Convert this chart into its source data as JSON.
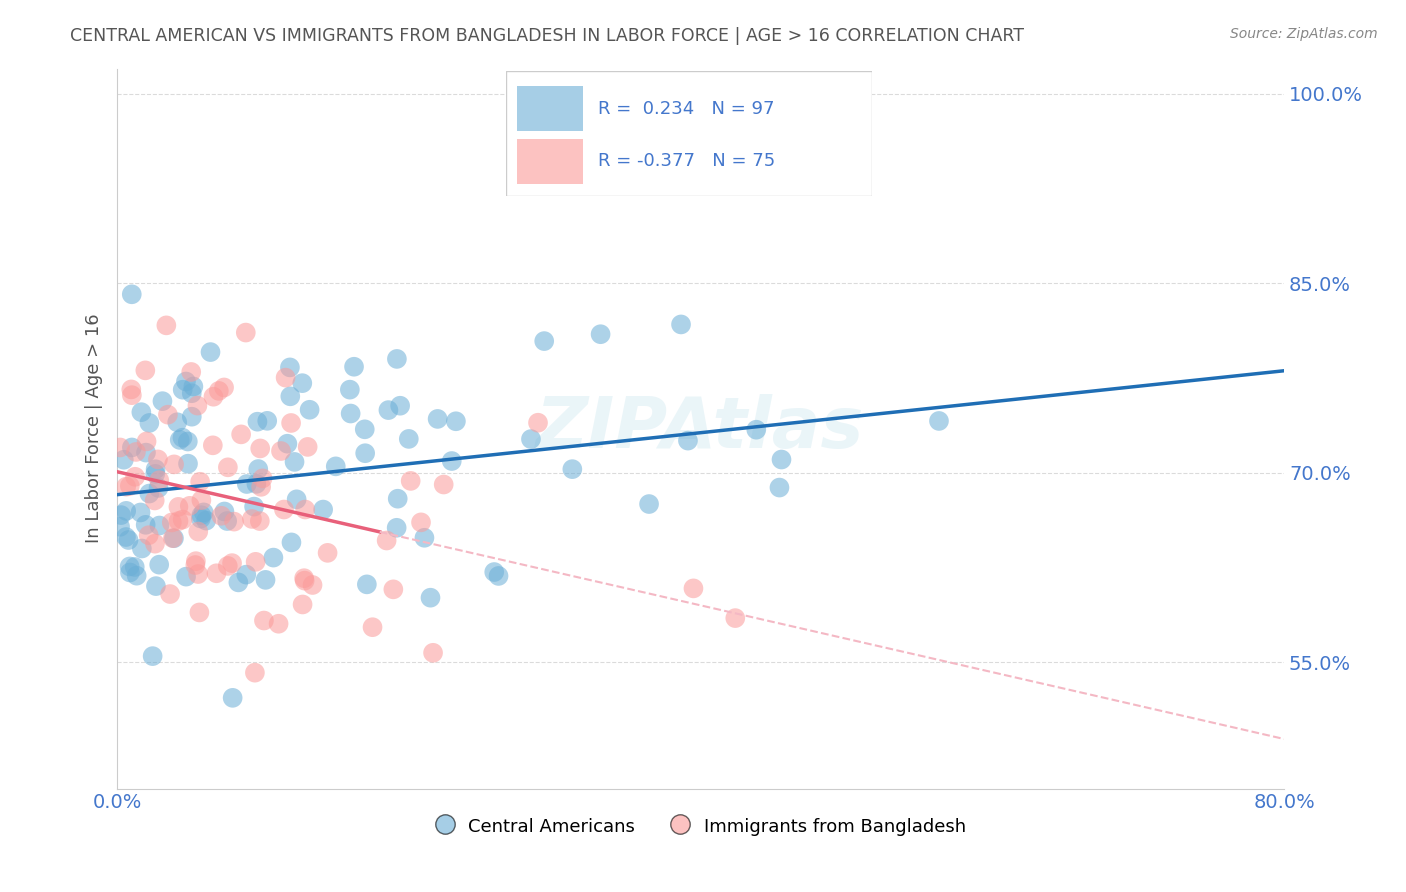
{
  "title": "CENTRAL AMERICAN VS IMMIGRANTS FROM BANGLADESH IN LABOR FORCE | AGE > 16 CORRELATION CHART",
  "source": "Source: ZipAtlas.com",
  "ylabel": "In Labor Force | Age > 16",
  "watermark": "ZIPAtlas",
  "xlim": [
    0.0,
    0.8
  ],
  "ylim": [
    0.45,
    1.02
  ],
  "yticks": [
    0.55,
    0.7,
    0.85,
    1.0
  ],
  "ytick_labels": [
    "55.0%",
    "70.0%",
    "85.0%",
    "100.0%"
  ],
  "xticks": [
    0.0,
    0.2,
    0.4,
    0.6,
    0.8
  ],
  "xtick_labels": [
    "0.0%",
    "",
    "",
    "",
    "80.0%"
  ],
  "blue_R": 0.234,
  "blue_N": 97,
  "pink_R": -0.377,
  "pink_N": 75,
  "blue_color": "#6baed6",
  "pink_color": "#fb9a99",
  "blue_line_color": "#1f6eb5",
  "pink_line_color": "#e8607a",
  "pink_line_dashed_color": "#f4b8c4",
  "background_color": "#ffffff",
  "grid_color": "#cccccc",
  "tick_label_color": "#4477cc",
  "title_color": "#555555"
}
